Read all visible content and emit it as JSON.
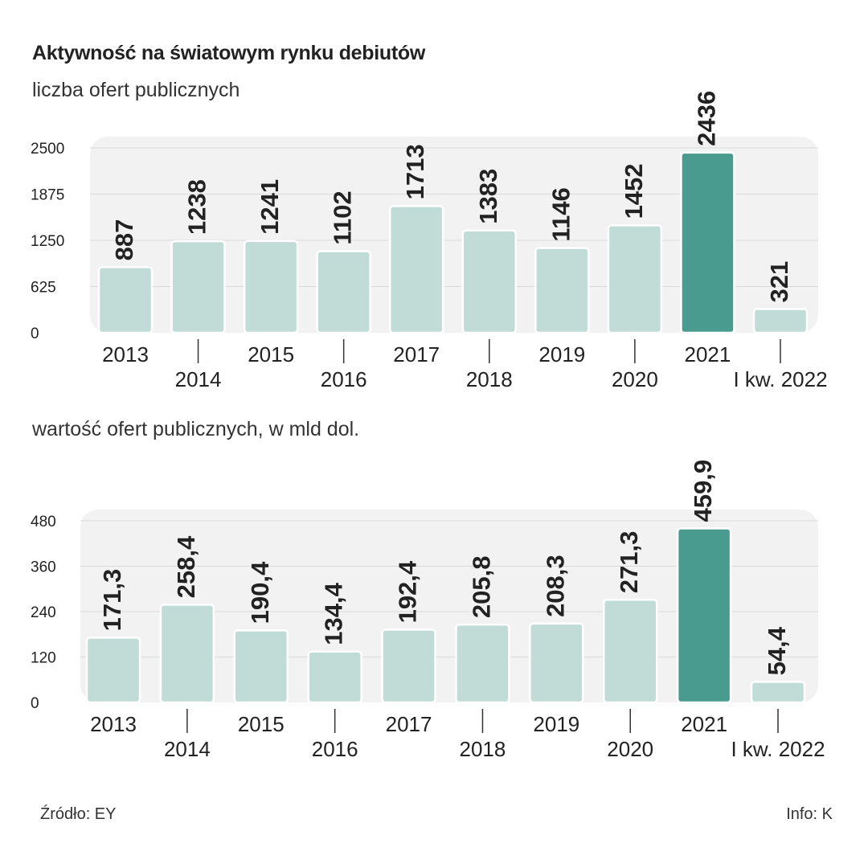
{
  "title": "Aktywność na światowym rynku debiutów",
  "footer": {
    "source": "Źródło: EY",
    "credit": "Info: K"
  },
  "colors": {
    "bar": "#c1dbd6",
    "bar_highlight": "#4a9b8f",
    "bar_border": "#ffffff",
    "panel": "#f1f2f1",
    "grid": "#d9d9d9",
    "text": "#222222"
  },
  "chart_data": [
    {
      "type": "bar",
      "title": "liczba ofert publicznych",
      "categories": [
        "2013",
        "2014",
        "2015",
        "2016",
        "2017",
        "2018",
        "2019",
        "2020",
        "2021",
        "I kw. 2022"
      ],
      "values": [
        887,
        1238,
        1241,
        1102,
        1713,
        1383,
        1146,
        1452,
        2436,
        321
      ],
      "value_labels": [
        "887",
        "1238",
        "1241",
        "1102",
        "1713",
        "1383",
        "1146",
        "1452",
        "2436",
        "321"
      ],
      "ylim": [
        0,
        2500
      ],
      "yticks": [
        "0",
        "625",
        "1250",
        "1875",
        "2500"
      ],
      "highlight_index": 8,
      "grid": true
    },
    {
      "type": "bar",
      "title": "wartość ofert publicznych, w mld dol.",
      "categories": [
        "2013",
        "2014",
        "2015",
        "2016",
        "2017",
        "2018",
        "2019",
        "2020",
        "2021",
        "I kw. 2022"
      ],
      "values": [
        171.3,
        258.4,
        190.4,
        134.4,
        192.4,
        205.8,
        208.3,
        271.3,
        459.9,
        54.4
      ],
      "value_labels": [
        "171,3",
        "258,4",
        "190,4",
        "134,4",
        "192,4",
        "205,8",
        "208,3",
        "271,3",
        "459,9",
        "54,4"
      ],
      "ylim": [
        0,
        480
      ],
      "yticks": [
        "0",
        "120",
        "240",
        "360",
        "480"
      ],
      "highlight_index": 8,
      "grid": true
    }
  ]
}
